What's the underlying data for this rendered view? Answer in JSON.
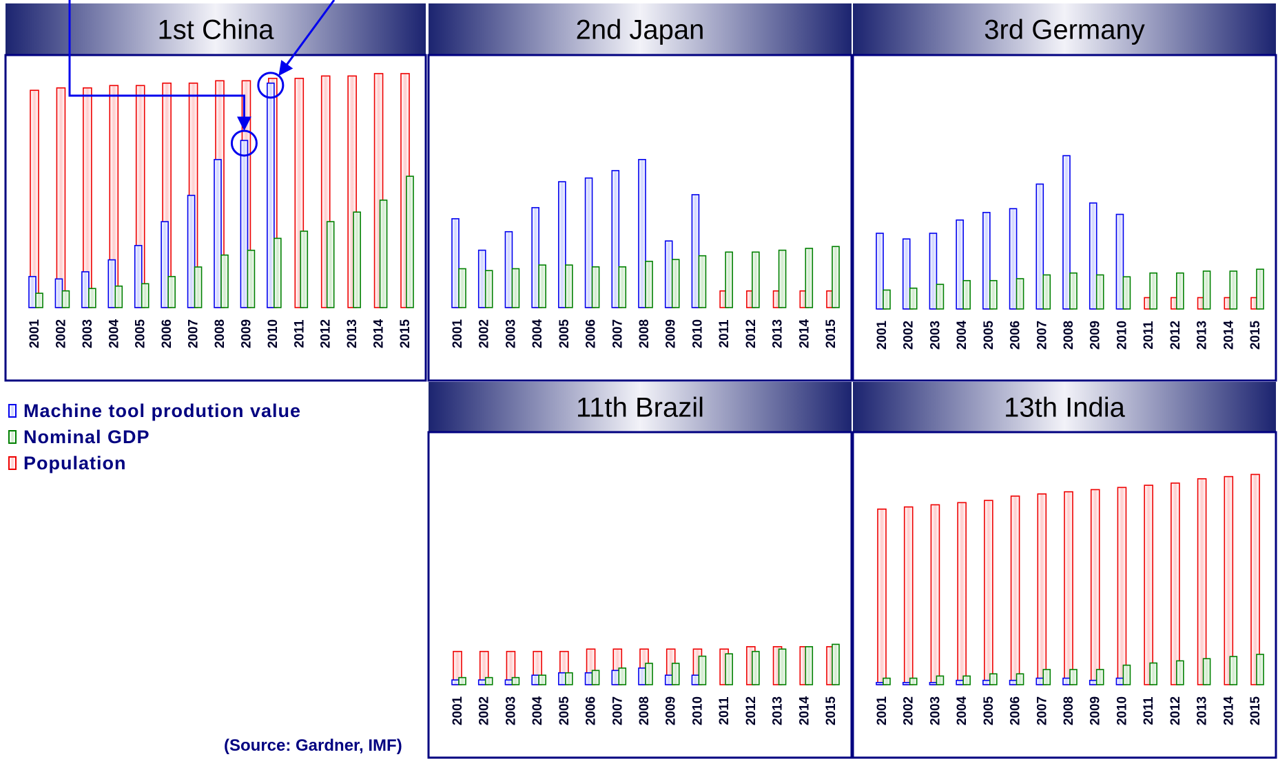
{
  "chart_data": [
    {
      "type": "bar",
      "title": "1st  China",
      "categories": [
        "2001",
        "2002",
        "2003",
        "2004",
        "2005",
        "2006",
        "2007",
        "2008",
        "2009",
        "2010",
        "2011",
        "2012",
        "2013",
        "2014",
        "2015"
      ],
      "ylim": [
        0,
        100
      ],
      "series": [
        {
          "name": "Machine tool prodution value",
          "values": [
            13,
            12,
            15,
            20,
            26,
            36,
            47,
            62,
            70,
            94,
            null,
            null,
            null,
            null,
            null
          ]
        },
        {
          "name": "Nominal GDP",
          "values": [
            6,
            7,
            8,
            9,
            10,
            13,
            17,
            22,
            24,
            29,
            32,
            36,
            40,
            45,
            55
          ]
        },
        {
          "name": "Population",
          "values": [
            91,
            92,
            92,
            93,
            93,
            94,
            94,
            95,
            95,
            96,
            96,
            97,
            97,
            98,
            98
          ]
        }
      ],
      "annotations": [
        "circle on 2009 machine tool bar",
        "circle on 2010 machine tool bar"
      ]
    },
    {
      "type": "bar",
      "title": "2nd  Japan",
      "categories": [
        "2001",
        "2002",
        "2003",
        "2004",
        "2005",
        "2006",
        "2007",
        "2008",
        "2009",
        "2010",
        "2011",
        "2012",
        "2013",
        "2014",
        "2015"
      ],
      "ylim": [
        0,
        100
      ],
      "series": [
        {
          "name": "Machine tool prodution value",
          "values": [
            48,
            31,
            41,
            54,
            68,
            70,
            74,
            80,
            36,
            61,
            null,
            null,
            null,
            null,
            null
          ]
        },
        {
          "name": "Nominal GDP",
          "values": [
            21,
            20,
            21,
            23,
            23,
            22,
            22,
            25,
            26,
            28,
            30,
            30,
            31,
            32,
            33
          ]
        },
        {
          "name": "Population",
          "values": [
            9,
            9,
            9,
            9,
            9,
            9,
            9,
            9,
            9,
            9,
            9,
            9,
            9,
            9,
            9
          ]
        }
      ]
    },
    {
      "type": "bar",
      "title": "3rd  Germany",
      "categories": [
        "2001",
        "2002",
        "2003",
        "2004",
        "2005",
        "2006",
        "2007",
        "2008",
        "2009",
        "2010",
        "2011",
        "2012",
        "2013",
        "2014",
        "2015"
      ],
      "ylim": [
        0,
        100
      ],
      "series": [
        {
          "name": "Machine tool prodution value",
          "values": [
            40,
            37,
            40,
            47,
            51,
            53,
            66,
            81,
            56,
            50,
            null,
            null,
            null,
            null,
            null
          ]
        },
        {
          "name": "Nominal GDP",
          "values": [
            10,
            11,
            13,
            15,
            15,
            16,
            18,
            19,
            18,
            17,
            19,
            19,
            20,
            20,
            21
          ]
        },
        {
          "name": "Population",
          "values": [
            6,
            6,
            6,
            6,
            6,
            6,
            6,
            6,
            6,
            6,
            6,
            6,
            6,
            6,
            6
          ]
        }
      ]
    },
    {
      "type": "bar",
      "title": "11th  Brazil",
      "categories": [
        "2001",
        "2002",
        "2003",
        "2004",
        "2005",
        "2006",
        "2007",
        "2008",
        "2009",
        "2010",
        "2011",
        "2012",
        "2013",
        "2014",
        "2015"
      ],
      "ylim": [
        0,
        100
      ],
      "series": [
        {
          "name": "Machine tool prodution value",
          "values": [
            2,
            2,
            2,
            4,
            5,
            5,
            6,
            7,
            4,
            4,
            null,
            null,
            null,
            null,
            null
          ]
        },
        {
          "name": "Nominal GDP",
          "values": [
            3,
            3,
            3,
            4,
            5,
            6,
            7,
            9,
            9,
            12,
            13,
            14,
            15,
            16,
            17
          ]
        },
        {
          "name": "Population",
          "values": [
            14,
            14,
            14,
            14,
            14,
            15,
            15,
            15,
            15,
            15,
            15,
            16,
            16,
            16,
            16
          ]
        }
      ]
    },
    {
      "type": "bar",
      "title": "13th  India",
      "categories": [
        "2001",
        "2002",
        "2003",
        "2004",
        "2005",
        "2006",
        "2007",
        "2008",
        "2009",
        "2010",
        "2011",
        "2012",
        "2013",
        "2014",
        "2015"
      ],
      "ylim": [
        0,
        100
      ],
      "series": [
        {
          "name": "Machine tool prodution value",
          "values": [
            1,
            1,
            1,
            2,
            2,
            2,
            3,
            3,
            2,
            3,
            null,
            null,
            null,
            null,
            null
          ]
        },
        {
          "name": "Nominal GDP",
          "values": [
            3,
            3,
            4,
            4,
            5,
            5,
            7,
            7,
            7,
            9,
            10,
            11,
            12,
            13,
            14
          ]
        },
        {
          "name": "Population",
          "values": [
            81,
            82,
            83,
            84,
            85,
            87,
            88,
            89,
            90,
            91,
            92,
            93,
            95,
            96,
            97
          ]
        }
      ]
    }
  ],
  "legend": {
    "items": [
      {
        "label": "Machine tool prodution value",
        "color": "#0000ee"
      },
      {
        "label": "Nominal GDP",
        "color": "#008000"
      },
      {
        "label": "Population",
        "color": "#ee0000"
      }
    ]
  },
  "source": "(Source: Gardner, IMF)",
  "colors": {
    "frame": "#000080",
    "title_band_dark": "#1c2470",
    "title_band_light": "#f2f2f8"
  }
}
